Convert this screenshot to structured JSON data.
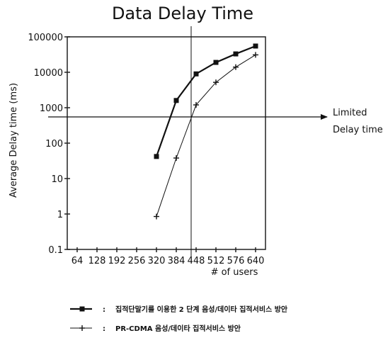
{
  "chart_data": {
    "type": "line",
    "title": "Data Delay Time",
    "xlabel": "# of users",
    "ylabel": "Average Delay time (ms)",
    "x_scale": "category",
    "y_scale": "log",
    "categories": [
      "64",
      "128",
      "192",
      "256",
      "320",
      "384",
      "448",
      "512",
      "576",
      "640"
    ],
    "y_ticks": [
      "0.1",
      "1",
      "10",
      "100",
      "1000",
      "10000",
      "100000"
    ],
    "ylim": [
      0.1,
      100000
    ],
    "grid": false,
    "legend_position": "bottom",
    "series": [
      {
        "name": "집적단말기를 이용한 2 단계 음성/데이타 집적서비스 방안",
        "marker": "square",
        "values": [
          null,
          null,
          null,
          null,
          42,
          1600,
          9000,
          19000,
          33000,
          55000
        ]
      },
      {
        "name": "PR-CDMA 음성/데이타 집적서비스 방안",
        "marker": "cross",
        "values": [
          null,
          null,
          null,
          null,
          0.85,
          38,
          1200,
          5200,
          14000,
          31000
        ]
      }
    ],
    "reference_lines": [
      {
        "orientation": "horizontal",
        "y": 550,
        "label": [
          "Limited",
          "Delay time"
        ]
      },
      {
        "orientation": "vertical",
        "x": "448"
      }
    ]
  }
}
